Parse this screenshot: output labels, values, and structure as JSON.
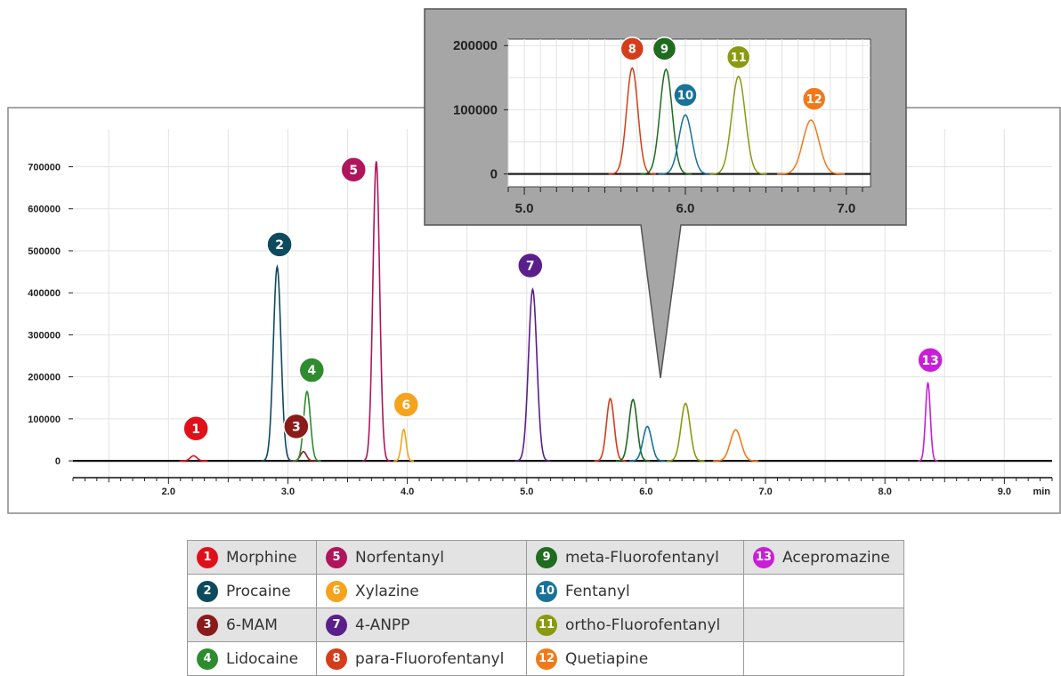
{
  "chart_data": [
    {
      "type": "line",
      "panel": "main",
      "x_unit_label": "min",
      "xlim": [
        1.2,
        9.4
      ],
      "ylim": [
        -40000,
        790000
      ],
      "x_ticks": [
        {
          "value": 2.0,
          "label": "2.0"
        },
        {
          "value": 3.0,
          "label": "3.0"
        },
        {
          "value": 4.0,
          "label": "4.0"
        },
        {
          "value": 5.0,
          "label": "5.0"
        },
        {
          "value": 6.0,
          "label": "6.0"
        },
        {
          "value": 7.0,
          "label": "7.0"
        },
        {
          "value": 8.0,
          "label": "8.0"
        },
        {
          "value": 9.0,
          "label": "9.0"
        }
      ],
      "y_ticks": [
        {
          "value": 0,
          "label": "0"
        },
        {
          "value": 100000,
          "label": "100000"
        },
        {
          "value": 200000,
          "label": "200000"
        },
        {
          "value": 300000,
          "label": "300000"
        },
        {
          "value": 400000,
          "label": "400000"
        },
        {
          "value": 500000,
          "label": "500000"
        },
        {
          "value": 600000,
          "label": "600000"
        },
        {
          "value": 700000,
          "label": "700000"
        }
      ],
      "grid": true,
      "peaks": [
        {
          "id": "1",
          "compound": "Morphine",
          "rt": 2.21,
          "height": 12000,
          "width": 0.028,
          "color": "#e0101a",
          "badge_rt": 2.23,
          "badge_y": 77000
        },
        {
          "id": "2",
          "compound": "Procaine",
          "rt": 2.91,
          "height": 462000,
          "width": 0.032,
          "color": "#0e4a5e",
          "badge_rt": 2.93,
          "badge_y": 515000
        },
        {
          "id": "3",
          "compound": "6-MAM",
          "rt": 3.13,
          "height": 22000,
          "width": 0.025,
          "color": "#8b1a1a",
          "badge_rt": 3.07,
          "badge_y": 82000
        },
        {
          "id": "4",
          "compound": "Lidocaine",
          "rt": 3.16,
          "height": 165000,
          "width": 0.028,
          "color": "#2e8b2e",
          "badge_rt": 3.2,
          "badge_y": 216000
        },
        {
          "id": "5",
          "compound": "Norfentanyl",
          "rt": 3.74,
          "height": 713000,
          "width": 0.028,
          "color": "#b0155c",
          "badge_rt": 3.55,
          "badge_y": 693000
        },
        {
          "id": "6",
          "compound": "Xylazine",
          "rt": 3.97,
          "height": 75000,
          "width": 0.02,
          "color": "#f5a31c",
          "badge_rt": 3.99,
          "badge_y": 134000
        },
        {
          "id": "7",
          "compound": "4-ANPP",
          "rt": 5.05,
          "height": 408000,
          "width": 0.035,
          "color": "#5a1f8a",
          "badge_rt": 5.03,
          "badge_y": 465000
        },
        {
          "id": "8",
          "compound": "para-Fluorofentanyl",
          "rt": 5.7,
          "height": 148000,
          "width": 0.032,
          "color": "#d43d1b",
          "badge_rt": null,
          "badge_y": null
        },
        {
          "id": "9",
          "compound": "meta-Fluorofentanyl",
          "rt": 5.89,
          "height": 146000,
          "width": 0.034,
          "color": "#1f6b1f",
          "badge_rt": null,
          "badge_y": null
        },
        {
          "id": "10",
          "compound": "Fentanyl",
          "rt": 6.01,
          "height": 82000,
          "width": 0.036,
          "color": "#18729a",
          "badge_rt": null,
          "badge_y": null
        },
        {
          "id": "11",
          "compound": "ortho-Fluorofentanyl",
          "rt": 6.33,
          "height": 137000,
          "width": 0.038,
          "color": "#8a9a10",
          "badge_rt": null,
          "badge_y": null
        },
        {
          "id": "12",
          "compound": "Quetiapine",
          "rt": 6.75,
          "height": 74000,
          "width": 0.045,
          "color": "#f07a1a",
          "badge_rt": null,
          "badge_y": null
        },
        {
          "id": "13",
          "compound": "Acepromazine",
          "rt": 8.36,
          "height": 185000,
          "width": 0.02,
          "color": "#c81fd6",
          "badge_rt": 8.38,
          "badge_y": 240000
        }
      ]
    },
    {
      "type": "line",
      "panel": "inset",
      "xlim": [
        4.9,
        7.15
      ],
      "ylim": [
        -20000,
        210000
      ],
      "x_ticks": [
        {
          "value": 5.0,
          "label": "5.0"
        },
        {
          "value": 6.0,
          "label": "6.0"
        },
        {
          "value": 7.0,
          "label": "7.0"
        }
      ],
      "y_ticks": [
        {
          "value": 0,
          "label": "0"
        },
        {
          "value": 100000,
          "label": "100000"
        },
        {
          "value": 200000,
          "label": "200000"
        }
      ],
      "grid": true,
      "peaks": [
        {
          "id": "8",
          "compound": "para-Fluorofentanyl",
          "rt": 5.67,
          "height": 165000,
          "width": 0.035,
          "color": "#d43d1b",
          "badge_rt": 5.67,
          "badge_y": 195000
        },
        {
          "id": "9",
          "compound": "meta-Fluorofentanyl",
          "rt": 5.88,
          "height": 163000,
          "width": 0.038,
          "color": "#1f6b1f",
          "badge_rt": 5.87,
          "badge_y": 195000
        },
        {
          "id": "10",
          "compound": "Fentanyl",
          "rt": 6.0,
          "height": 92000,
          "width": 0.04,
          "color": "#18729a",
          "badge_rt": 6.0,
          "badge_y": 123000
        },
        {
          "id": "11",
          "compound": "ortho-Fluorofentanyl",
          "rt": 6.33,
          "height": 152000,
          "width": 0.042,
          "color": "#8a9a10",
          "badge_rt": 6.33,
          "badge_y": 182000
        },
        {
          "id": "12",
          "compound": "Quetiapine",
          "rt": 6.78,
          "height": 84000,
          "width": 0.05,
          "color": "#f07a1a",
          "badge_rt": 6.8,
          "badge_y": 117000
        }
      ]
    }
  ],
  "legend": {
    "rows": [
      [
        {
          "id": "1",
          "name": "Morphine",
          "color": "#e0101a"
        },
        {
          "id": "5",
          "name": "Norfentanyl",
          "color": "#b0155c"
        },
        {
          "id": "9",
          "name": "meta-Fluorofentanyl",
          "color": "#1f6b1f"
        },
        {
          "id": "13",
          "name": "Acepromazine",
          "color": "#c81fd6"
        }
      ],
      [
        {
          "id": "2",
          "name": "Procaine",
          "color": "#0e4a5e"
        },
        {
          "id": "6",
          "name": "Xylazine",
          "color": "#f5a31c"
        },
        {
          "id": "10",
          "name": "Fentanyl",
          "color": "#18729a"
        },
        null
      ],
      [
        {
          "id": "3",
          "name": "6-MAM",
          "color": "#8b1a1a"
        },
        {
          "id": "7",
          "name": "4-ANPP",
          "color": "#5a1f8a"
        },
        {
          "id": "11",
          "name": "ortho-Fluorofentanyl",
          "color": "#8a9a10"
        },
        null
      ],
      [
        {
          "id": "4",
          "name": "Lidocaine",
          "color": "#2e8b2e"
        },
        {
          "id": "8",
          "name": "para-Fluorofentanyl",
          "color": "#d43d1b"
        },
        {
          "id": "12",
          "name": "Quetiapine",
          "color": "#f07a1a"
        },
        null
      ]
    ]
  }
}
